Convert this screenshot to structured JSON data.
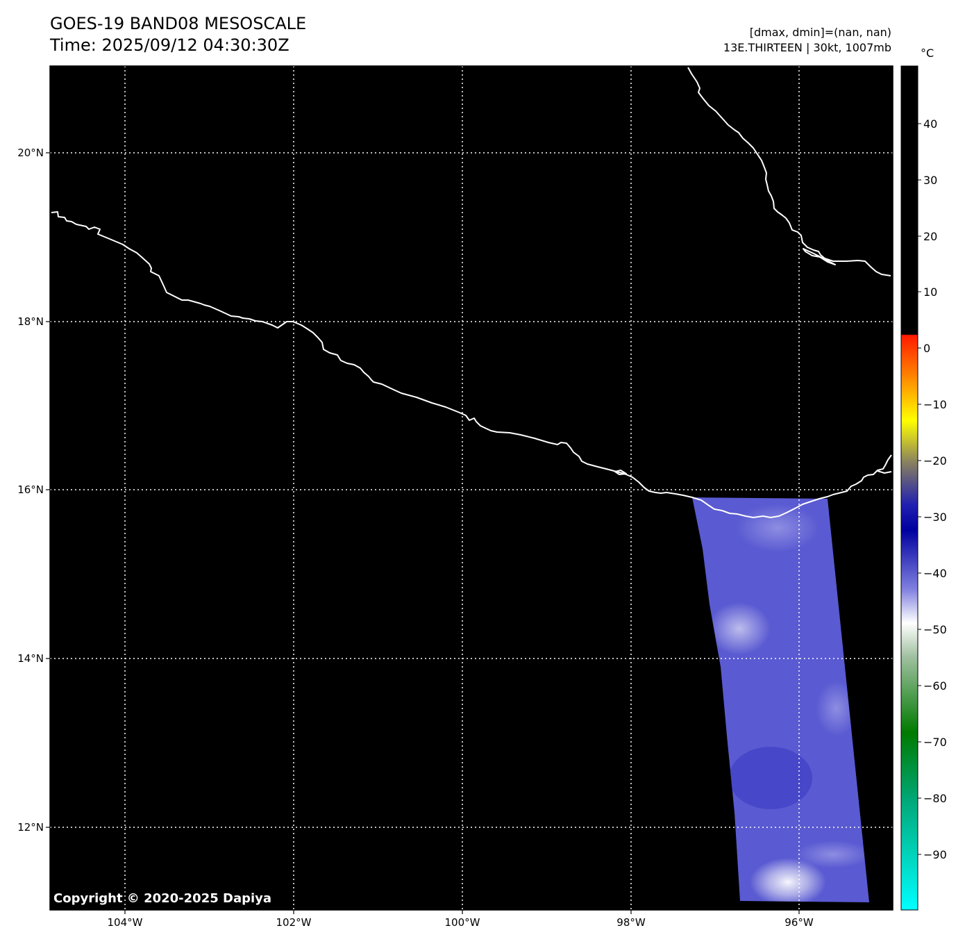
{
  "header": {
    "title_line1": "GOES-19 BAND08 MESOSCALE",
    "title_line2": "Time: 2025/09/12 04:30:30Z",
    "range_text": "[dmax, dmin]=(nan, nan)",
    "storm_text": "13E.THIRTEEN | 30kt, 1007mb"
  },
  "map": {
    "lon_labels": [
      "104°W",
      "102°W",
      "100°W",
      "98°W",
      "96°W"
    ],
    "lat_labels": [
      "20°N",
      "18°N",
      "16°N",
      "14°N",
      "12°N"
    ],
    "background_color": "#000000",
    "coastline_color": "#ffffff",
    "gridline_style": "dotted white"
  },
  "colorbar": {
    "unit": "°C",
    "tick_labels": [
      "40",
      "30",
      "20",
      "10",
      "0",
      "−10",
      "−20",
      "−30",
      "−40",
      "−50",
      "−60",
      "−70",
      "−80",
      "−90"
    ],
    "range": [
      -100,
      49
    ]
  },
  "footer": {
    "copyright": "Copyright © 2020-2025 Dapiya"
  }
}
